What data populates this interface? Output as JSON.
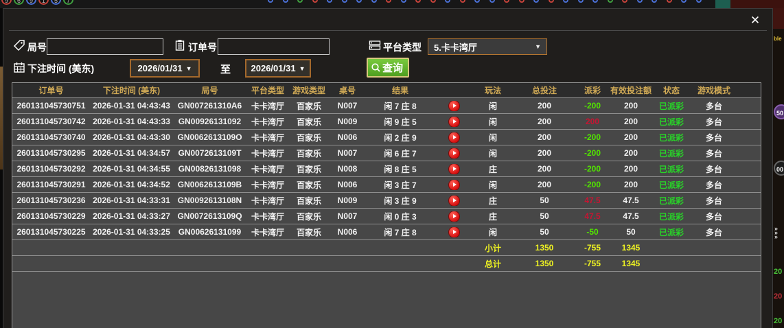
{
  "modal": {
    "close_glyph": "✕"
  },
  "filters": {
    "round_label": "局号",
    "round_value": "",
    "order_label": "订单号",
    "order_value": "",
    "platform_label": "平台类型",
    "platform_value": "5.卡卡湾厅",
    "bet_time_label": "下注时间 (美东)",
    "date_from": "2026/01/31",
    "to_label": "至",
    "date_to": "2026/01/31",
    "search_label": "查询",
    "dropdown_arrow": "▼"
  },
  "table": {
    "headers": [
      "订单号",
      "下注时间 (美东)",
      "局号",
      "平台类型",
      "游戏类型",
      "桌号",
      "结果",
      "",
      "玩法",
      "总投注",
      "派彩",
      "有效投注额",
      "状态",
      "游戏模式"
    ],
    "rows": [
      {
        "order_id": "260131045730751",
        "bet_time": "2026-01-31 04:43:43",
        "round_id": "GN007261310A6",
        "platform": "卡卡湾厅",
        "game_type": "百家乐",
        "table_no": "N007",
        "result": "闲 7 庄 8",
        "bet_side": "闲",
        "total_bet": "200",
        "payout": "-200",
        "payout_tone": "loss",
        "valid_bet": "200",
        "status": "已派彩",
        "game_mode": "多台"
      },
      {
        "order_id": "260131045730742",
        "bet_time": "2026-01-31 04:43:33",
        "round_id": "GN00926131092",
        "platform": "卡卡湾厅",
        "game_type": "百家乐",
        "table_no": "N009",
        "result": "闲 9 庄 5",
        "bet_side": "闲",
        "total_bet": "200",
        "payout": "200",
        "payout_tone": "win",
        "valid_bet": "200",
        "status": "已派彩",
        "game_mode": "多台"
      },
      {
        "order_id": "260131045730740",
        "bet_time": "2026-01-31 04:43:30",
        "round_id": "GN0062613109O",
        "platform": "卡卡湾厅",
        "game_type": "百家乐",
        "table_no": "N006",
        "result": "闲 2 庄 9",
        "bet_side": "闲",
        "total_bet": "200",
        "payout": "-200",
        "payout_tone": "loss",
        "valid_bet": "200",
        "status": "已派彩",
        "game_mode": "多台"
      },
      {
        "order_id": "260131045730295",
        "bet_time": "2026-01-31 04:34:57",
        "round_id": "GN0072613109T",
        "platform": "卡卡湾厅",
        "game_type": "百家乐",
        "table_no": "N007",
        "result": "闲 6 庄 7",
        "bet_side": "闲",
        "total_bet": "200",
        "payout": "-200",
        "payout_tone": "loss",
        "valid_bet": "200",
        "status": "已派彩",
        "game_mode": "多台"
      },
      {
        "order_id": "260131045730292",
        "bet_time": "2026-01-31 04:34:55",
        "round_id": "GN00826131098",
        "platform": "卡卡湾厅",
        "game_type": "百家乐",
        "table_no": "N008",
        "result": "闲 8 庄 5",
        "bet_side": "庄",
        "total_bet": "200",
        "payout": "-200",
        "payout_tone": "loss",
        "valid_bet": "200",
        "status": "已派彩",
        "game_mode": "多台"
      },
      {
        "order_id": "260131045730291",
        "bet_time": "2026-01-31 04:34:52",
        "round_id": "GN0062613109B",
        "platform": "卡卡湾厅",
        "game_type": "百家乐",
        "table_no": "N006",
        "result": "闲 3 庄 7",
        "bet_side": "闲",
        "total_bet": "200",
        "payout": "-200",
        "payout_tone": "loss",
        "valid_bet": "200",
        "status": "已派彩",
        "game_mode": "多台"
      },
      {
        "order_id": "260131045730236",
        "bet_time": "2026-01-31 04:33:31",
        "round_id": "GN0092613108N",
        "platform": "卡卡湾厅",
        "game_type": "百家乐",
        "table_no": "N009",
        "result": "闲 3 庄 9",
        "bet_side": "庄",
        "total_bet": "50",
        "payout": "47.5",
        "payout_tone": "win",
        "valid_bet": "47.5",
        "status": "已派彩",
        "game_mode": "多台"
      },
      {
        "order_id": "260131045730229",
        "bet_time": "2026-01-31 04:33:27",
        "round_id": "GN0072613109Q",
        "platform": "卡卡湾厅",
        "game_type": "百家乐",
        "table_no": "N007",
        "result": "闲 0 庄 3",
        "bet_side": "庄",
        "total_bet": "50",
        "payout": "47.5",
        "payout_tone": "win",
        "valid_bet": "47.5",
        "status": "已派彩",
        "game_mode": "多台"
      },
      {
        "order_id": "260131045730225",
        "bet_time": "2026-01-31 04:33:25",
        "round_id": "GN00626131099",
        "platform": "卡卡湾厅",
        "game_type": "百家乐",
        "table_no": "N006",
        "result": "闲 7 庄 8",
        "bet_side": "闲",
        "total_bet": "50",
        "payout": "-50",
        "payout_tone": "loss",
        "valid_bet": "50",
        "status": "已派彩",
        "game_mode": "多台"
      }
    ],
    "subtotal": {
      "label": "小计",
      "total_bet": "1350",
      "payout": "-755",
      "valid_bet": "1345"
    },
    "total": {
      "label": "总计",
      "total_bet": "1350",
      "payout": "-755",
      "valid_bet": "1345"
    }
  },
  "colors": {
    "payout_win": "#c81432",
    "payout_loss": "#52e400",
    "status_paid": "#28d428",
    "summary_yellow": "#eef222",
    "header_gold": "#d2ab56",
    "search_green": "#5fb42e",
    "date_border": "#a4692c",
    "row_bg": "#474747"
  },
  "decor": {
    "badges": [
      {
        "num": "9",
        "color": "#c4423a"
      },
      {
        "num": "6",
        "color": "#3f9e3f"
      },
      {
        "num": "9",
        "color": "#4a6fd4"
      },
      {
        "num": "1",
        "color": "#c4423a"
      },
      {
        "num": "5",
        "color": "#4a6fd4"
      },
      {
        "num": "7",
        "color": "#3f9e3f"
      }
    ],
    "beads": [
      "B",
      "B",
      "G",
      "R",
      "B",
      "B",
      "B",
      "B",
      "R",
      "B",
      "R",
      "R",
      "B",
      "R",
      "B",
      "B",
      "R",
      "R",
      "B",
      "R",
      "B",
      "B",
      "B",
      "G",
      "R",
      "B",
      "B",
      "R",
      "B",
      "B"
    ],
    "bead_colors": {
      "B": "#4a6fd4",
      "R": "#c4423a",
      "G": "#3f9e3f"
    },
    "right_fragments": {
      "text_top": "ble",
      "chip_purple": "50",
      "chip_black": "00",
      "chevrons": "»",
      "amount_1": "20",
      "amount_2": "20",
      "amount_3": "20"
    }
  }
}
